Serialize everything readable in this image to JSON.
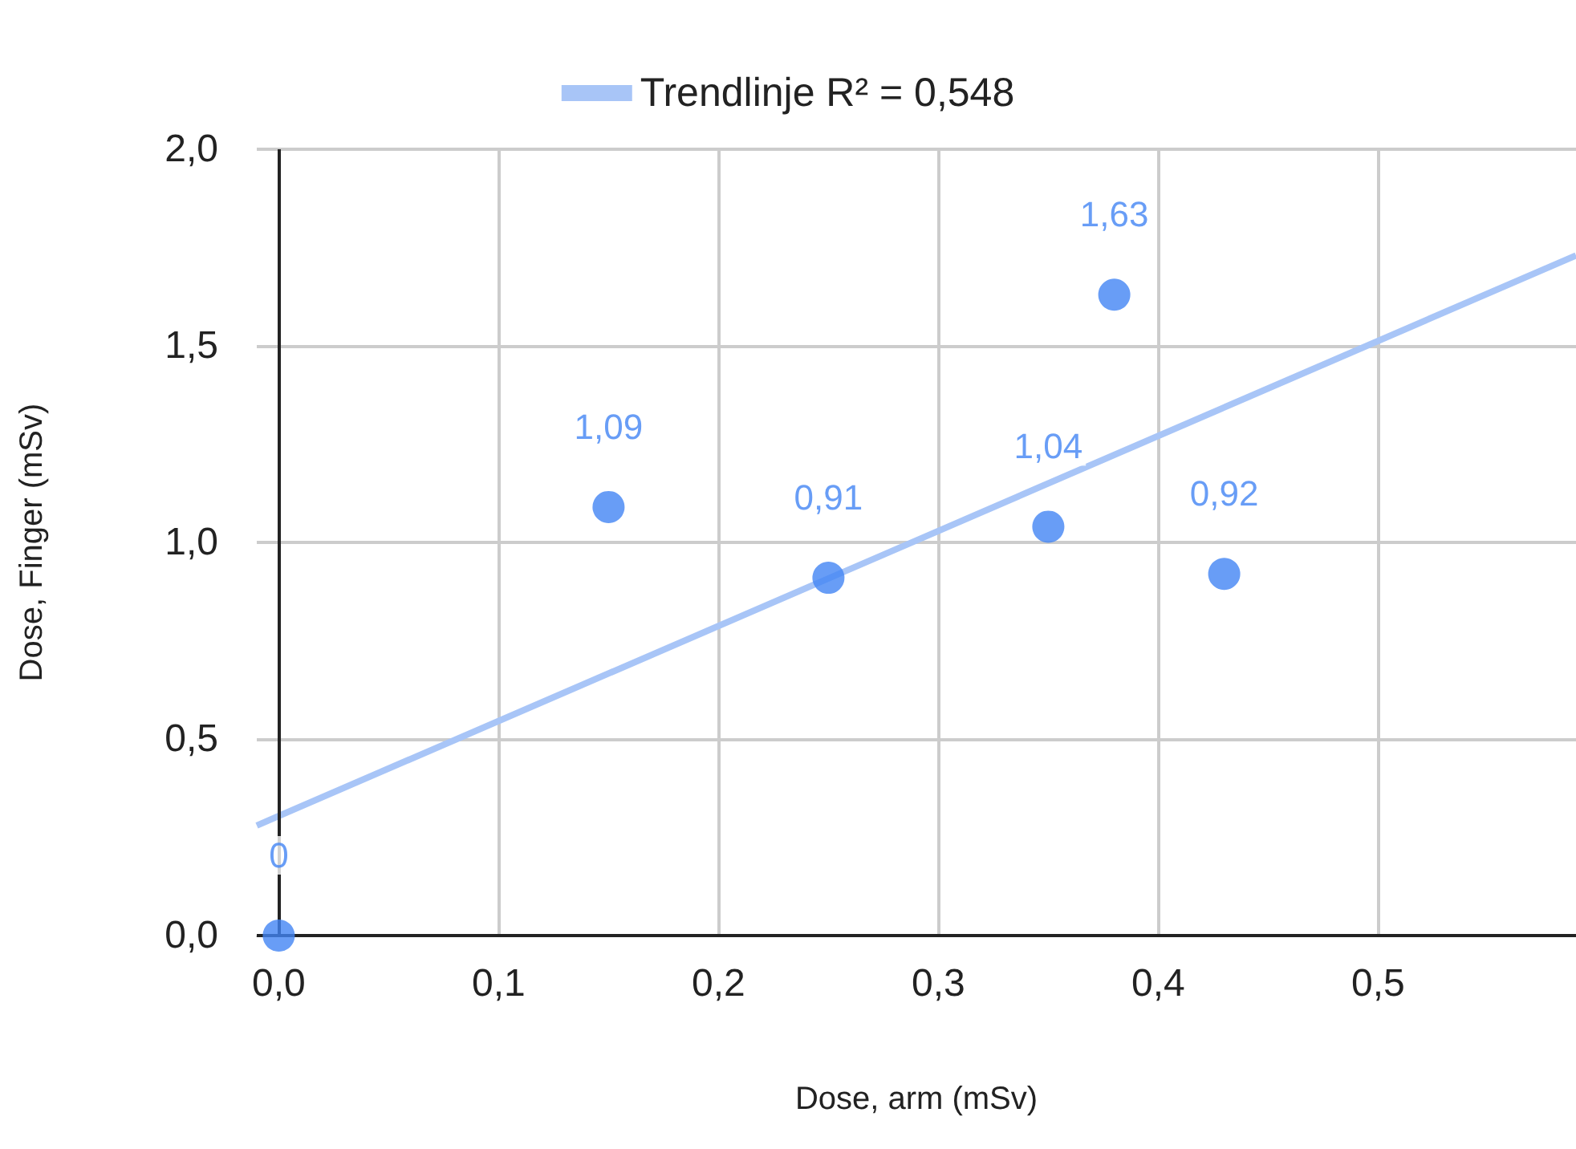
{
  "chart_data": {
    "type": "scatter",
    "xlabel": "Dose, arm (mSv)",
    "ylabel": "Dose, Finger (mSv)",
    "series": [
      {
        "color": "#4285f4",
        "marker": "circle",
        "x": [
          0,
          0.15,
          0.25,
          0.35,
          0.38,
          0.43
        ],
        "values": [
          0,
          1.09,
          0.91,
          1.04,
          1.63,
          0.92
        ],
        "value_labels": [
          "0",
          "1,09",
          "0,91",
          "1,04",
          "1,63",
          "0,92"
        ]
      },
      {
        "type": "line",
        "name": "Trendlinje R² = 0,548",
        "color": "#a8c5f7",
        "x": [
          -0.01,
          0.59
        ],
        "values": [
          0.28,
          1.73
        ]
      }
    ],
    "xlim": [
      -0.01,
      0.59
    ],
    "ylim": [
      0,
      2
    ],
    "xticks": [
      {
        "value": 0,
        "label": "0,0"
      },
      {
        "value": 0.1,
        "label": "0,1"
      },
      {
        "value": 0.2,
        "label": "0,2"
      },
      {
        "value": 0.3,
        "label": "0,3"
      },
      {
        "value": 0.4,
        "label": "0,4"
      },
      {
        "value": 0.5,
        "label": "0,5"
      }
    ],
    "yticks": [
      {
        "value": 0,
        "label": "0,0"
      },
      {
        "value": 0.5,
        "label": "0,5"
      },
      {
        "value": 1,
        "label": "1,0"
      },
      {
        "value": 1.5,
        "label": "1,5"
      },
      {
        "value": 2,
        "label": "2,0"
      }
    ],
    "grid": true,
    "legend": "top"
  }
}
